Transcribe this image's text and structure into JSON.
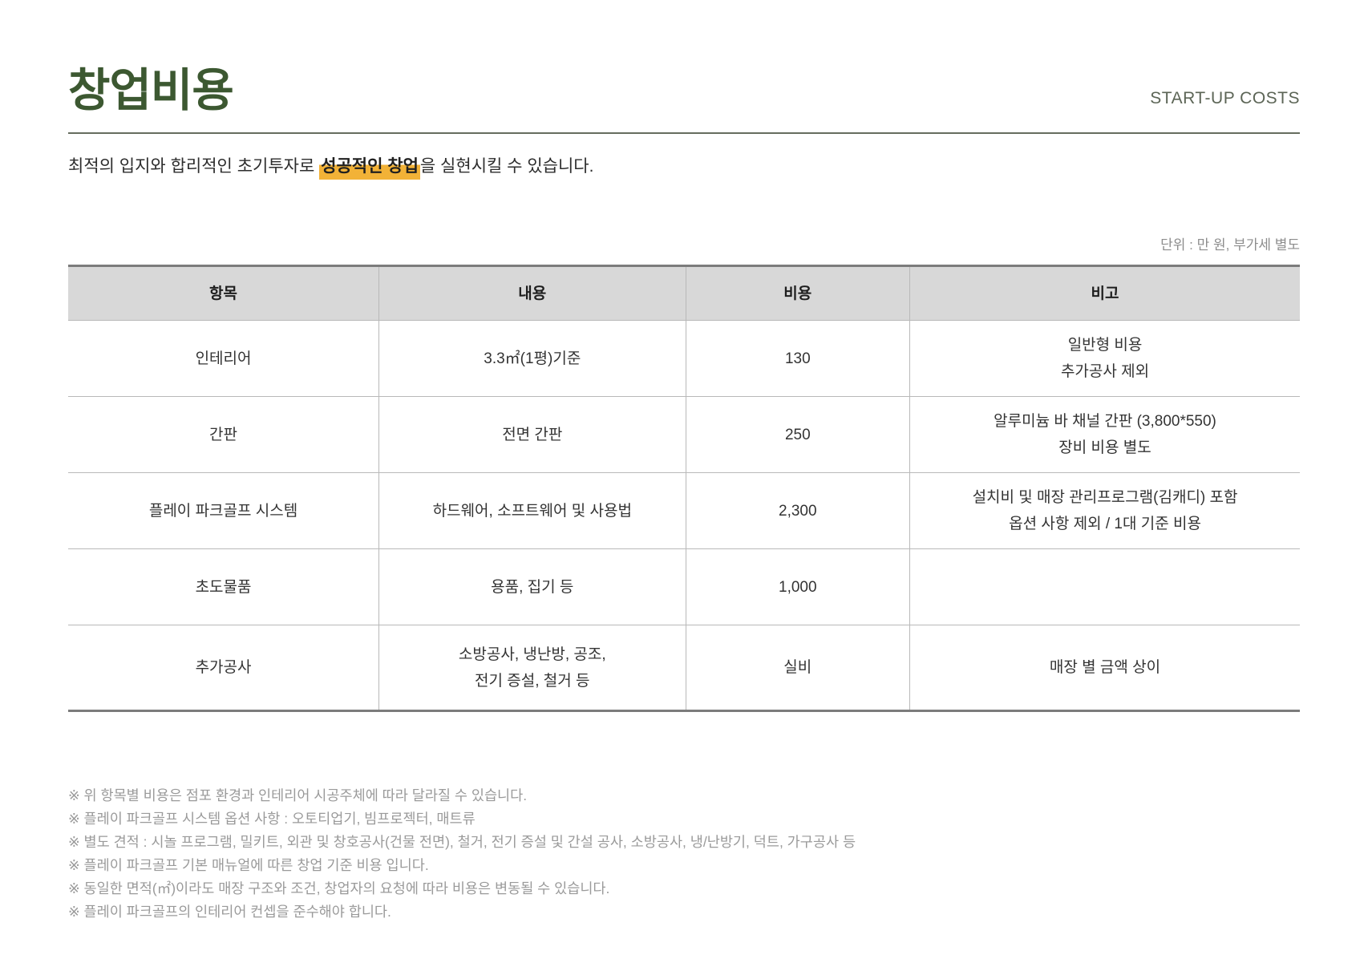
{
  "header": {
    "title": "창업비용",
    "subtitle_en": "START-UP COSTS"
  },
  "intro": {
    "prefix": "최적의 입지와 합리적인 초기투자로 ",
    "highlight": "성공적인 창업",
    "suffix": "을 실현시킬 수 있습니다."
  },
  "unit_note": "단위 : 만 원, 부가세 별도",
  "table": {
    "columns": [
      "항목",
      "내용",
      "비용",
      "비고"
    ],
    "rows": [
      {
        "cells": [
          [
            "인테리어"
          ],
          [
            "3.3㎡(1평)기준"
          ],
          [
            "130"
          ],
          [
            "일반형 비용",
            "추가공사 제외"
          ]
        ]
      },
      {
        "cells": [
          [
            "간판"
          ],
          [
            "전면 간판"
          ],
          [
            "250"
          ],
          [
            "알루미늄 바 채널 간판 (3,800*550)",
            "장비 비용 별도"
          ]
        ]
      },
      {
        "cells": [
          [
            "플레이 파크골프 시스템"
          ],
          [
            "하드웨어, 소프트웨어 및 사용법"
          ],
          [
            "2,300"
          ],
          [
            "설치비 및 매장 관리프로그램(김캐디) 포함",
            "옵션 사항 제외 / 1대 기준 비용"
          ]
        ]
      },
      {
        "cells": [
          [
            "초도물품"
          ],
          [
            "용품, 집기 등"
          ],
          [
            "1,000"
          ],
          []
        ]
      },
      {
        "cells": [
          [
            "추가공사"
          ],
          [
            "소방공사, 냉난방, 공조,",
            "전기 증설, 철거 등"
          ],
          [
            "실비"
          ],
          [
            "매장 별 금액 상이"
          ]
        ]
      }
    ]
  },
  "notes": [
    "※ 위 항목별 비용은 점포 환경과 인테리어 시공주체에 따라 달라질 수 있습니다.",
    "※ 플레이 파크골프 시스템 옵션 사항 : 오토티업기, 빔프로젝터, 매트류",
    "※ 별도 견적 : 시놀 프로그램, 밀키트, 외관 및 창호공사(건물 전면), 철거, 전기 증설 및 간설 공사, 소방공사, 냉/난방기, 덕트, 가구공사 등",
    "※ 플레이 파크골프 기본 매뉴얼에 따른 창업 기준 비용 입니다.",
    "※ 동일한 면적(㎡)이라도 매장 구조와 조건, 창업자의 요청에 따라 비용은 변동될 수 있습니다.",
    "※ 플레이 파크골프의 인테리어 컨셉을 준수해야 합니다."
  ],
  "colors": {
    "title_green": "#3c5831",
    "highlight_yellow": "#f2b237",
    "header_bg": "#d8d8d8",
    "border_dark": "#7c7c7c",
    "border_light": "#b9b9b9",
    "note_gray": "#9a9a9a"
  }
}
